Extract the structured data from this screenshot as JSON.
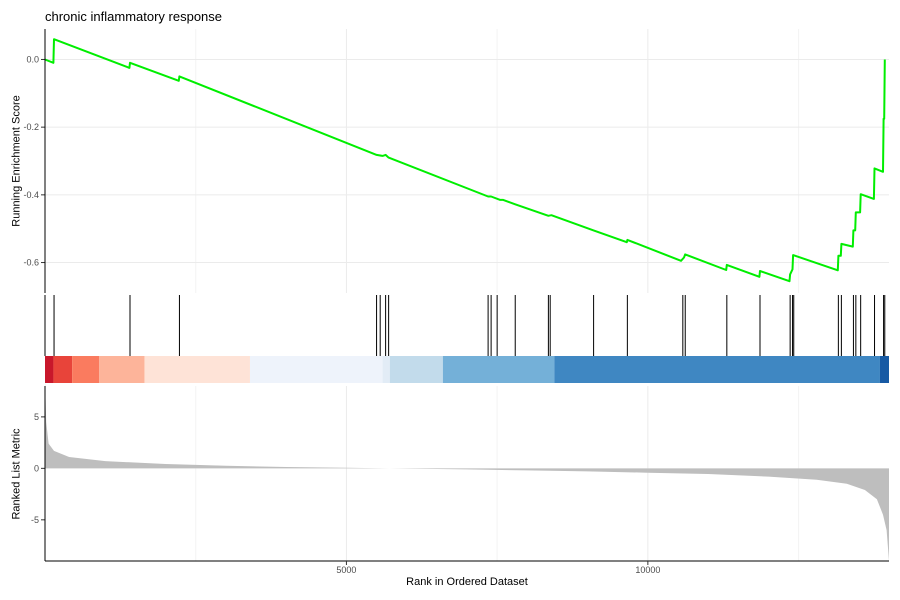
{
  "chart_data": {
    "type": "line",
    "title": "chronic inflammatory response",
    "xlabel": "Rank in Ordered Dataset",
    "xlim": [
      0,
      14000
    ],
    "x_ticks": [
      5000,
      10000
    ],
    "x_tick_labels": [
      "5000",
      "10000"
    ],
    "grid": true,
    "panels": {
      "enrichment": {
        "ylabel": "Running Enrichment Score",
        "ylim": [
          -0.69,
          0.09
        ],
        "y_ticks": [
          0.0,
          -0.2,
          -0.4,
          -0.6
        ],
        "y_tick_labels": [
          "0.0",
          "-0.2",
          "-0.4",
          "-0.6"
        ],
        "line_color": "#00ee00",
        "points": [
          [
            0,
            0.0
          ],
          [
            140,
            -0.01
          ],
          [
            150,
            0.06
          ],
          [
            1400,
            -0.025
          ],
          [
            1410,
            -0.01
          ],
          [
            2220,
            -0.063
          ],
          [
            2230,
            -0.05
          ],
          [
            5500,
            -0.282
          ],
          [
            5600,
            -0.285
          ],
          [
            5650,
            -0.282
          ],
          [
            5700,
            -0.29
          ],
          [
            7350,
            -0.405
          ],
          [
            7400,
            -0.405
          ],
          [
            7550,
            -0.415
          ],
          [
            7600,
            -0.415
          ],
          [
            7800,
            -0.428
          ],
          [
            8350,
            -0.462
          ],
          [
            8400,
            -0.46
          ],
          [
            9100,
            -0.505
          ],
          [
            9650,
            -0.54
          ],
          [
            9660,
            -0.533
          ],
          [
            10550,
            -0.595
          ],
          [
            10600,
            -0.585
          ],
          [
            10620,
            -0.576
          ],
          [
            11300,
            -0.622
          ],
          [
            11310,
            -0.607
          ],
          [
            11850,
            -0.642
          ],
          [
            11860,
            -0.625
          ],
          [
            12350,
            -0.655
          ],
          [
            12360,
            -0.635
          ],
          [
            12400,
            -0.62
          ],
          [
            12410,
            -0.578
          ],
          [
            13150,
            -0.623
          ],
          [
            13160,
            -0.58
          ],
          [
            13200,
            -0.58
          ],
          [
            13210,
            -0.545
          ],
          [
            13400,
            -0.553
          ],
          [
            13410,
            -0.505
          ],
          [
            13440,
            -0.505
          ],
          [
            13450,
            -0.452
          ],
          [
            13520,
            -0.452
          ],
          [
            13530,
            -0.398
          ],
          [
            13750,
            -0.412
          ],
          [
            13760,
            -0.322
          ],
          [
            13900,
            -0.332
          ],
          [
            13910,
            -0.175
          ],
          [
            13920,
            -0.175
          ],
          [
            13930,
            0.0
          ]
        ]
      },
      "hits": {
        "positions": [
          150,
          1410,
          2230,
          5500,
          5560,
          5650,
          5700,
          7350,
          7400,
          7500,
          7800,
          8350,
          8380,
          9100,
          9660,
          10580,
          10620,
          11310,
          11860,
          12360,
          12400,
          12420,
          13160,
          13210,
          13410,
          13450,
          13530,
          13760,
          13910,
          13930
        ]
      },
      "color_bands": [
        {
          "from": 0,
          "to": 140,
          "color": "#c8172b"
        },
        {
          "from": 140,
          "to": 450,
          "color": "#e8443a"
        },
        {
          "from": 450,
          "to": 900,
          "color": "#fa7b5f"
        },
        {
          "from": 900,
          "to": 1650,
          "color": "#fdb49a"
        },
        {
          "from": 1650,
          "to": 3400,
          "color": "#fee3d7"
        },
        {
          "from": 3400,
          "to": 5600,
          "color": "#eef3fb"
        },
        {
          "from": 5600,
          "to": 5720,
          "color": "#e2ecf6"
        },
        {
          "from": 5720,
          "to": 6600,
          "color": "#c2dbeb"
        },
        {
          "from": 6600,
          "to": 8450,
          "color": "#74b0d8"
        },
        {
          "from": 8450,
          "to": 13850,
          "color": "#3f87c2"
        },
        {
          "from": 13850,
          "to": 14000,
          "color": "#175aa4"
        }
      ],
      "ranked_metric": {
        "ylabel": "Ranked List Metric",
        "ylim": [
          -9.0,
          8.0
        ],
        "y_ticks": [
          5,
          0,
          -5
        ],
        "y_tick_labels": [
          "5",
          "0",
          "-5"
        ],
        "fill_color": "#bebebe",
        "points": [
          [
            0,
            8.5
          ],
          [
            20,
            4.5
          ],
          [
            60,
            2.4
          ],
          [
            150,
            1.7
          ],
          [
            400,
            1.1
          ],
          [
            1000,
            0.7
          ],
          [
            2000,
            0.42
          ],
          [
            3000,
            0.25
          ],
          [
            4000,
            0.13
          ],
          [
            5000,
            0.05
          ],
          [
            6000,
            -0.02
          ],
          [
            7000,
            -0.1
          ],
          [
            8000,
            -0.2
          ],
          [
            9000,
            -0.3
          ],
          [
            10000,
            -0.42
          ],
          [
            11000,
            -0.55
          ],
          [
            12000,
            -0.8
          ],
          [
            12800,
            -1.1
          ],
          [
            13300,
            -1.5
          ],
          [
            13600,
            -2.1
          ],
          [
            13800,
            -3.0
          ],
          [
            13900,
            -4.5
          ],
          [
            13960,
            -6.0
          ],
          [
            14000,
            -9.0
          ]
        ]
      }
    }
  }
}
